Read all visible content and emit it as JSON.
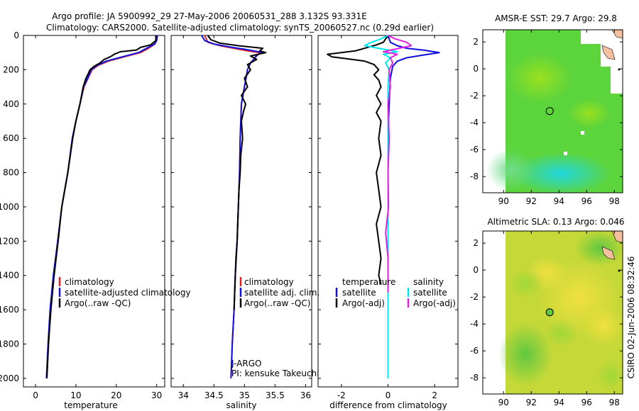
{
  "title": {
    "line1": "Argo profile: JA 5900992_29 27-May-2006 20060531_288 3.132S 93.331E",
    "line2": "Climatology: CARS2000. Satellite-adjusted climatology: synTS_20060527.nc (0.29d earlier)"
  },
  "side_label": "CSIRO 02-Jun-2006 08:32:46",
  "colors": {
    "climatology": "#e02020",
    "satellite": "#1010e0",
    "argo": "#000000",
    "cyan": "#00e8f0",
    "magenta": "#e020e0"
  },
  "chart_data": [
    {
      "type": "line",
      "name": "temperature",
      "xlabel": "temperature",
      "ylabel": "",
      "xlim": [
        -3,
        32
      ],
      "ylim": [
        2050,
        0
      ],
      "xticks": [
        0,
        10,
        20,
        30
      ],
      "yticks": [
        0,
        200,
        400,
        600,
        800,
        1000,
        1200,
        1400,
        1600,
        1800,
        2000
      ],
      "series": [
        {
          "name": "climatology",
          "color": "#e02020",
          "points": [
            [
              30,
              0
            ],
            [
              29.9,
              30
            ],
            [
              29.6,
              50
            ],
            [
              28,
              75
            ],
            [
              26,
              100
            ],
            [
              22,
              125
            ],
            [
              18,
              150
            ],
            [
              15.5,
              175
            ],
            [
              14,
              200
            ],
            [
              13,
              250
            ],
            [
              12,
              300
            ],
            [
              11,
              400
            ],
            [
              10,
              500
            ],
            [
              9.2,
              600
            ],
            [
              8,
              800
            ],
            [
              6.5,
              1000
            ],
            [
              5.5,
              1200
            ],
            [
              4.5,
              1400
            ],
            [
              3.7,
              1600
            ],
            [
              3.2,
              1800
            ],
            [
              2.8,
              2000
            ]
          ]
        },
        {
          "name": "satellite-adjusted climatology",
          "color": "#1010e0",
          "points": [
            [
              30.2,
              0
            ],
            [
              30,
              30
            ],
            [
              29.5,
              50
            ],
            [
              27.5,
              75
            ],
            [
              25.5,
              100
            ],
            [
              21.5,
              125
            ],
            [
              17.5,
              150
            ],
            [
              15.2,
              175
            ],
            [
              13.8,
              200
            ],
            [
              12.9,
              250
            ],
            [
              11.9,
              300
            ],
            [
              11,
              400
            ],
            [
              10,
              500
            ],
            [
              9.1,
              600
            ],
            [
              8,
              800
            ],
            [
              6.5,
              1000
            ],
            [
              5.5,
              1200
            ],
            [
              4.4,
              1400
            ],
            [
              3.6,
              1600
            ],
            [
              3.1,
              1800
            ],
            [
              2.7,
              2000
            ]
          ]
        },
        {
          "name": "Argo(..raw -QC)",
          "color": "#000000",
          "points": [
            [
              29.8,
              0
            ],
            [
              29.8,
              30
            ],
            [
              28.5,
              55
            ],
            [
              26,
              70
            ],
            [
              25,
              85
            ],
            [
              21,
              95
            ],
            [
              19.5,
              110
            ],
            [
              18.5,
              125
            ],
            [
              17,
              140
            ],
            [
              16,
              160
            ],
            [
              14.5,
              180
            ],
            [
              13.5,
              200
            ],
            [
              12.5,
              250
            ],
            [
              11.8,
              300
            ],
            [
              11,
              400
            ],
            [
              10,
              500
            ],
            [
              9.2,
              600
            ],
            [
              8,
              800
            ],
            [
              6.5,
              1000
            ],
            [
              5.6,
              1200
            ],
            [
              4.6,
              1400
            ],
            [
              3.8,
              1600
            ],
            [
              3.2,
              1800
            ],
            [
              2.8,
              2000
            ]
          ]
        }
      ],
      "legend": [
        {
          "label": "climatology",
          "color": "#e02020"
        },
        {
          "label": "satellite-adjusted climatology",
          "color": "#1010e0"
        },
        {
          "label": "Argo(..raw -QC)",
          "color": "#000000"
        }
      ]
    },
    {
      "type": "line",
      "name": "salinity",
      "xlabel": "salinity",
      "xlim": [
        33.8,
        36.1
      ],
      "ylim": [
        2050,
        0
      ],
      "xticks": [
        34,
        34.5,
        35,
        35.5,
        36
      ],
      "series": [
        {
          "name": "climatology",
          "color": "#e02020",
          "points": [
            [
              34.35,
              0
            ],
            [
              34.4,
              40
            ],
            [
              34.6,
              60
            ],
            [
              35.05,
              90
            ],
            [
              35.25,
              100
            ],
            [
              35.2,
              120
            ],
            [
              35.15,
              140
            ],
            [
              35.1,
              160
            ],
            [
              35.05,
              200
            ],
            [
              35.0,
              300
            ],
            [
              34.95,
              400
            ],
            [
              34.93,
              600
            ],
            [
              34.92,
              800
            ],
            [
              34.9,
              1000
            ],
            [
              34.88,
              1200
            ],
            [
              34.85,
              1400
            ],
            [
              34.83,
              1600
            ],
            [
              34.8,
              1800
            ],
            [
              34.78,
              2000
            ]
          ]
        },
        {
          "name": "satellite adj. clim.",
          "color": "#1010e0",
          "points": [
            [
              34.3,
              0
            ],
            [
              34.35,
              30
            ],
            [
              34.5,
              50
            ],
            [
              34.8,
              70
            ],
            [
              35.0,
              80
            ],
            [
              35.3,
              100
            ],
            [
              35.2,
              115
            ],
            [
              35.15,
              140
            ],
            [
              35.1,
              160
            ],
            [
              35.05,
              200
            ],
            [
              35.0,
              300
            ],
            [
              34.95,
              400
            ],
            [
              34.93,
              600
            ],
            [
              34.92,
              800
            ],
            [
              34.9,
              1000
            ],
            [
              34.88,
              1200
            ],
            [
              34.85,
              1400
            ],
            [
              34.83,
              1600
            ],
            [
              34.8,
              1800
            ],
            [
              34.78,
              2000
            ]
          ]
        },
        {
          "name": "Argo(..raw -QC)",
          "color": "#000000",
          "points": [
            [
              34.4,
              0
            ],
            [
              34.45,
              25
            ],
            [
              34.6,
              45
            ],
            [
              34.9,
              60
            ],
            [
              35.3,
              75
            ],
            [
              35.25,
              90
            ],
            [
              35.35,
              100
            ],
            [
              35.1,
              120
            ],
            [
              35.2,
              140
            ],
            [
              35.05,
              170
            ],
            [
              35.1,
              200
            ],
            [
              35.0,
              250
            ],
            [
              35.05,
              300
            ],
            [
              34.95,
              350
            ],
            [
              35.02,
              400
            ],
            [
              34.98,
              450
            ],
            [
              34.95,
              500
            ],
            [
              34.97,
              600
            ],
            [
              34.94,
              700
            ],
            [
              34.93,
              800
            ],
            [
              34.91,
              900
            ],
            [
              34.9,
              1000
            ],
            [
              34.89,
              1100
            ],
            [
              34.88,
              1200
            ],
            [
              34.86,
              1300
            ],
            [
              34.85,
              1400
            ],
            [
              34.84,
              1500
            ],
            [
              34.83,
              1600
            ]
          ]
        }
      ],
      "legend": [
        {
          "label": "climatology",
          "color": "#e02020"
        },
        {
          "label": "satellite adj. clim.",
          "color": "#1010e0"
        },
        {
          "label": "Argo(..raw -QC)",
          "color": "#000000"
        }
      ],
      "notes": [
        "J-ARGO",
        "PI: kensuke Takeuchi"
      ]
    },
    {
      "type": "line",
      "name": "difference",
      "xlabel": "difference from climatology",
      "xlim": [
        -3,
        3
      ],
      "ylim": [
        2050,
        0
      ],
      "xticks": [
        -2,
        0,
        2
      ],
      "series": [
        {
          "name": "temperature satellite",
          "color": "#1010e0",
          "points": [
            [
              0,
              0
            ],
            [
              0.1,
              40
            ],
            [
              0.4,
              60
            ],
            [
              0.8,
              75
            ],
            [
              1.5,
              85
            ],
            [
              2.2,
              100
            ],
            [
              1.5,
              115
            ],
            [
              0.8,
              130
            ],
            [
              0.4,
              150
            ],
            [
              0.2,
              180
            ],
            [
              0.1,
              250
            ],
            [
              0.05,
              400
            ],
            [
              0,
              600
            ],
            [
              0,
              1000
            ],
            [
              0,
              1500
            ],
            [
              0,
              2000
            ]
          ]
        },
        {
          "name": "temperature Argo(-adj)",
          "color": "#000000",
          "points": [
            [
              0,
              0
            ],
            [
              -0.2,
              40
            ],
            [
              -0.5,
              55
            ],
            [
              -1.0,
              75
            ],
            [
              -1.4,
              90
            ],
            [
              -2.6,
              110
            ],
            [
              -2.4,
              125
            ],
            [
              -1.8,
              135
            ],
            [
              -1.0,
              150
            ],
            [
              -0.6,
              170
            ],
            [
              -0.4,
              200
            ],
            [
              -0.6,
              230
            ],
            [
              -0.4,
              260
            ],
            [
              -0.3,
              300
            ],
            [
              -0.5,
              350
            ],
            [
              -0.3,
              400
            ],
            [
              -0.5,
              450
            ],
            [
              -0.3,
              500
            ],
            [
              -0.4,
              600
            ],
            [
              -0.3,
              700
            ],
            [
              -0.5,
              800
            ],
            [
              -0.4,
              900
            ],
            [
              -0.3,
              1000
            ],
            [
              -0.5,
              1100
            ],
            [
              -0.4,
              1200
            ],
            [
              -0.3,
              1300
            ],
            [
              -0.4,
              1400
            ],
            [
              -0.3,
              1450
            ]
          ]
        },
        {
          "name": "salinity satellite",
          "color": "#00e8f0",
          "points": [
            [
              0,
              0
            ],
            [
              -0.3,
              20
            ],
            [
              -0.8,
              45
            ],
            [
              -1.0,
              60
            ],
            [
              -0.2,
              80
            ],
            [
              0.4,
              95
            ],
            [
              -0.2,
              110
            ],
            [
              0.1,
              130
            ],
            [
              -0.1,
              160
            ],
            [
              0.05,
              200
            ],
            [
              0,
              300
            ],
            [
              0,
              500
            ],
            [
              0,
              1000
            ],
            [
              0,
              1500
            ],
            [
              0,
              2000
            ]
          ]
        },
        {
          "name": "salinity Argo(-adj)",
          "color": "#e020e0",
          "points": [
            [
              0,
              0
            ],
            [
              0.3,
              20
            ],
            [
              0.8,
              40
            ],
            [
              1.0,
              60
            ],
            [
              0.3,
              80
            ],
            [
              -0.2,
              95
            ],
            [
              0.4,
              110
            ],
            [
              0.1,
              130
            ],
            [
              0.2,
              160
            ],
            [
              0.05,
              200
            ],
            [
              0.1,
              300
            ],
            [
              0,
              400
            ],
            [
              0.05,
              600
            ],
            [
              0,
              800
            ],
            [
              0.02,
              1000
            ],
            [
              -0.1,
              1150
            ],
            [
              0,
              1300
            ],
            [
              0,
              1500
            ]
          ]
        }
      ],
      "legend": [
        {
          "label": "temperature",
          "color": ""
        },
        {
          "label": "satellite",
          "color": "#1010e0"
        },
        {
          "label": "Argo(-adj)",
          "color": "#000000"
        },
        {
          "label": "salinity",
          "color": ""
        },
        {
          "label": "satellite",
          "color": "#00e8f0"
        },
        {
          "label": "Argo(-adj)",
          "color": "#e020e0"
        }
      ]
    },
    {
      "type": "heatmap",
      "name": "sst-map",
      "title": "AMSR-E SST: 29.7 Argo: 29.8",
      "xlim": [
        88.5,
        98.6
      ],
      "ylim": [
        -9.2,
        2.9
      ],
      "xticks": [
        90,
        92,
        94,
        96,
        98
      ],
      "yticks": [
        2,
        0,
        -2,
        -4,
        -6,
        -8
      ],
      "float_position": [
        93.331,
        -3.132
      ]
    },
    {
      "type": "heatmap",
      "name": "sla-map",
      "title": "Altimetric SLA: 0.13 Argo: 0.046",
      "xlim": [
        88.5,
        98.6
      ],
      "ylim": [
        -9.2,
        2.9
      ],
      "xticks": [
        90,
        92,
        94,
        96,
        98
      ],
      "yticks": [
        2,
        0,
        -2,
        -4,
        -6,
        -8
      ],
      "float_position": [
        93.331,
        -3.132
      ]
    }
  ]
}
